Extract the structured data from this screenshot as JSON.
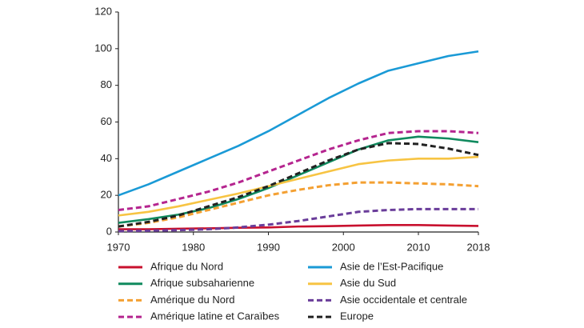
{
  "chart_data": {
    "type": "line",
    "x": [
      1970,
      1974,
      1978,
      1982,
      1986,
      1990,
      1994,
      1998,
      2002,
      2006,
      2010,
      2014,
      2018
    ],
    "xlim": [
      1970,
      2018
    ],
    "xticks": [
      1970,
      1980,
      1990,
      2000,
      2010,
      2018
    ],
    "ylim": [
      0,
      120
    ],
    "yticks": [
      0,
      20,
      40,
      60,
      80,
      100,
      120
    ],
    "grid": false,
    "series": [
      {
        "name": "Afrique du Nord",
        "color": "#c8102e",
        "dashed": false,
        "values": [
          1.5,
          1.5,
          1.8,
          2,
          2.3,
          2.5,
          3,
          3.2,
          3.5,
          3.8,
          3.8,
          3.5,
          3.3
        ]
      },
      {
        "name": "Afrique subsaharienne",
        "color": "#108a5e",
        "dashed": false,
        "values": [
          5,
          7,
          9.5,
          13,
          18,
          24,
          31,
          38,
          45,
          50,
          52,
          51,
          49
        ]
      },
      {
        "name": "Amérique du Nord",
        "color": "#f4a032",
        "dashed": true,
        "values": [
          3,
          5,
          8,
          12,
          16,
          20,
          23,
          25.5,
          27,
          27,
          26.5,
          26,
          25
        ]
      },
      {
        "name": "Amérique latine et Caraïbes",
        "color": "#b5258f",
        "dashed": true,
        "values": [
          12,
          14,
          18,
          22,
          27,
          33,
          39,
          45,
          50,
          54,
          55,
          55,
          54
        ]
      },
      {
        "name": "Asie de l’Est-Pacifique",
        "color": "#1a9ad6",
        "dashed": false,
        "values": [
          20,
          26,
          33,
          40,
          47,
          55,
          64,
          73,
          81,
          88,
          92,
          96,
          98.5
        ]
      },
      {
        "name": "Asie du Sud",
        "color": "#f7c443",
        "dashed": false,
        "values": [
          9,
          11,
          14,
          17.5,
          21,
          25,
          29,
          33,
          37,
          39,
          40,
          40,
          41
        ]
      },
      {
        "name": "Asie occidentale et centrale",
        "color": "#6a3d9a",
        "dashed": true,
        "values": [
          0.5,
          0.7,
          1,
          1.5,
          2.5,
          4,
          6,
          8.5,
          11,
          12,
          12.5,
          12.5,
          12.5
        ]
      },
      {
        "name": "Europe",
        "color": "#222222",
        "dashed": true,
        "values": [
          3,
          5.5,
          9,
          14,
          19,
          25,
          32,
          39,
          45,
          48.5,
          48,
          45.5,
          42
        ]
      }
    ]
  }
}
